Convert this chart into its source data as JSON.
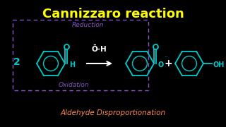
{
  "background_color": "#000000",
  "title": "Cannizzaro reaction",
  "title_color": "#FFFF00",
  "title_fontsize": 13,
  "reduction_label": "Reduction",
  "reduction_color": "#8855CC",
  "oxidation_label": "Oxidation",
  "oxidation_color": "#8855CC",
  "bottom_label": "Aldehyde Disproportionation",
  "bottom_color": "#FF8855",
  "structure_color": "#00CCCC",
  "white": "#FFFFFF",
  "dashed_box_color": "#8855CC"
}
